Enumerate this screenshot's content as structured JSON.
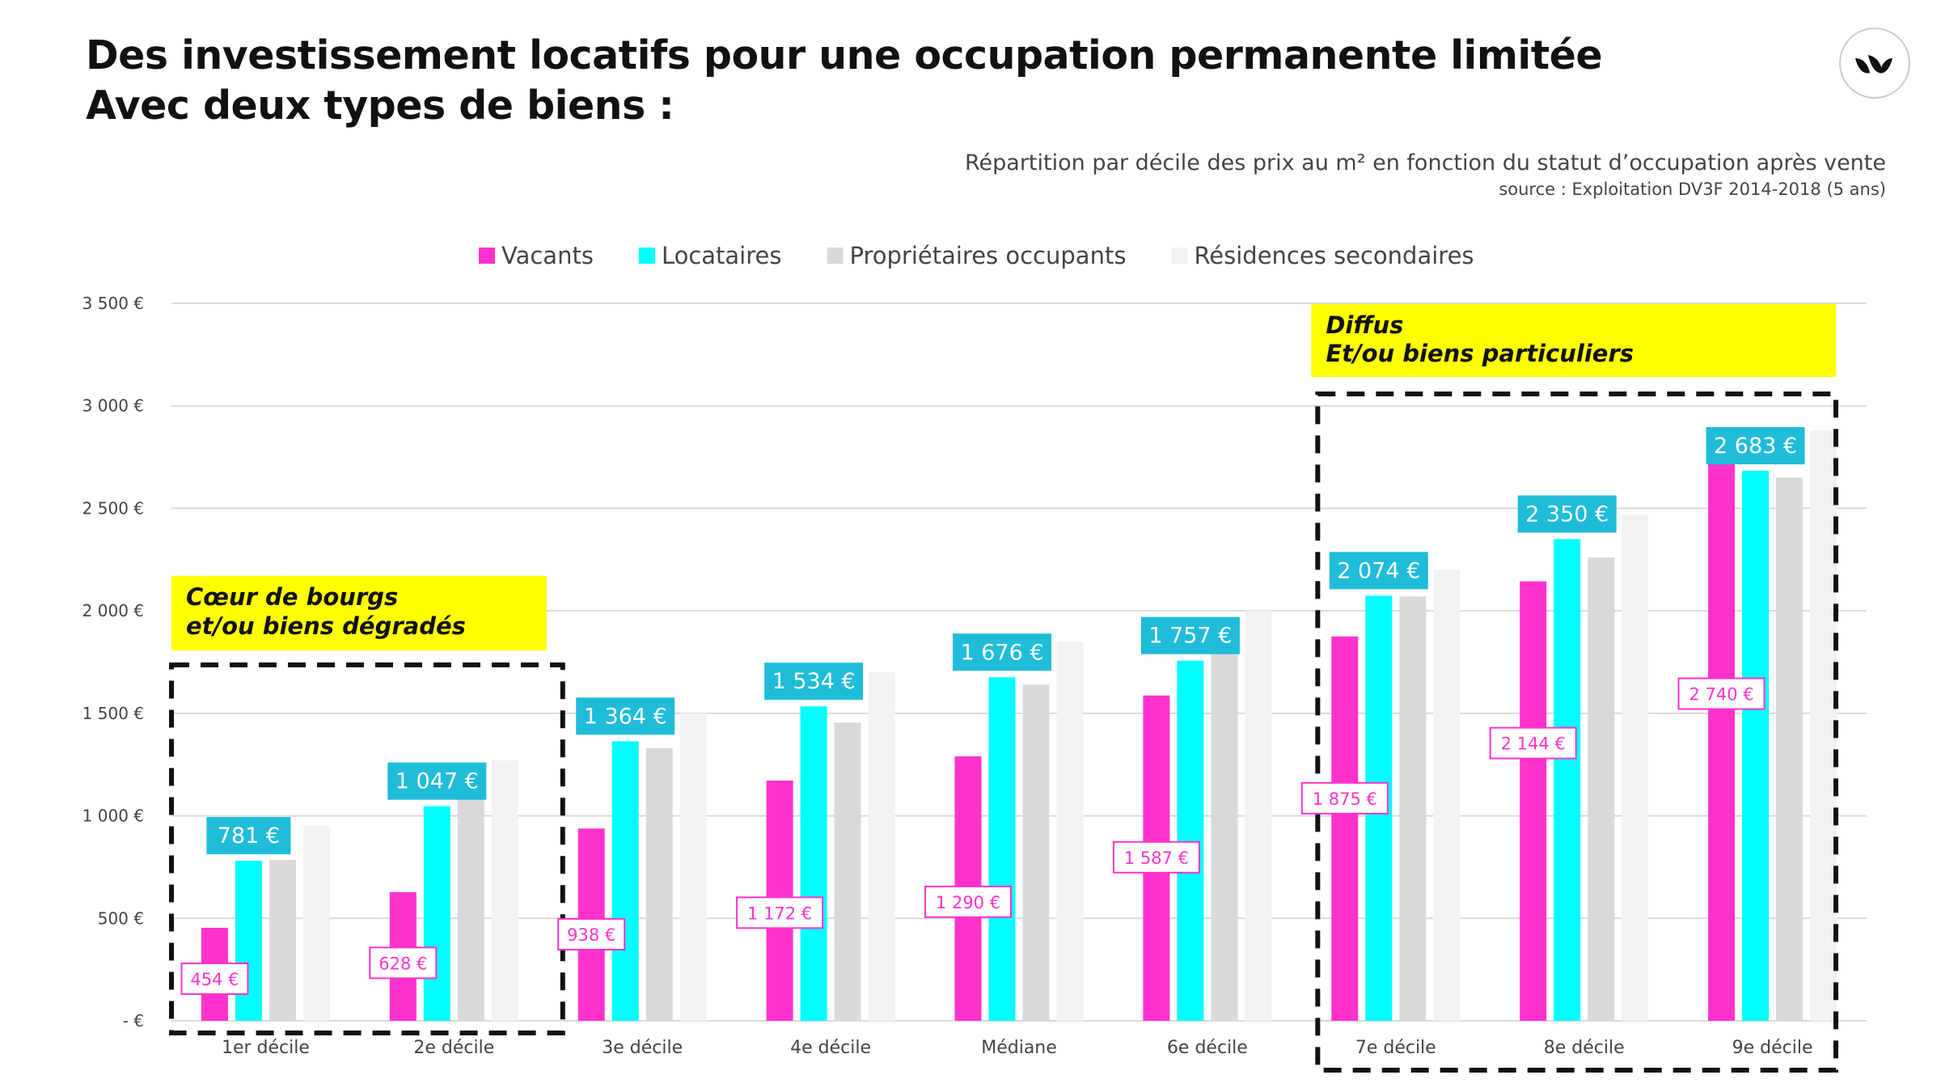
{
  "header": {
    "title_line1": "Des investissement locatifs pour une occupation permanente limitée",
    "title_line2": "Avec deux types de biens :",
    "subtitle": "Répartition par décile des prix au m² en fonction du statut d’occupation après vente",
    "source": "source : Exploitation DV3F 2014-2018 (5 ans)"
  },
  "colors": {
    "vacants": "#ff33cc",
    "locataires": "#00ffff",
    "proprietaires": "#d9d9d9",
    "residences": "#f2f2f2",
    "label_blue": "#1fbcd9",
    "highlight": "#ffff00"
  },
  "chart_data": {
    "type": "bar",
    "categories": [
      "1er décile",
      "2e décile",
      "3e décile",
      "4e décile",
      "Médiane",
      "6e décile",
      "7e décile",
      "8e décile",
      "9e décile"
    ],
    "series": [
      {
        "name": "Vacants",
        "values": [
          454,
          628,
          938,
          1172,
          1290,
          1587,
          1875,
          2144,
          2740
        ]
      },
      {
        "name": "Locataires",
        "values": [
          781,
          1047,
          1364,
          1534,
          1676,
          1757,
          2074,
          2350,
          2683
        ]
      },
      {
        "name": "Propriétaires occupants",
        "values": [
          785,
          1100,
          1330,
          1455,
          1640,
          1800,
          2070,
          2260,
          2650
        ]
      },
      {
        "name": "Résidences secondaires",
        "values": [
          950,
          1270,
          1500,
          1700,
          1850,
          2000,
          2200,
          2470,
          2880
        ]
      }
    ],
    "vacant_labels": [
      "454 €",
      "628 €",
      "938 €",
      "1 172 €",
      "1 290 €",
      "1 587 €",
      "1 875 €",
      "2 144 €",
      "2 740 €"
    ],
    "locataire_labels": [
      "781 €",
      "1 047 €",
      "1 364 €",
      "1 534 €",
      "1 676 €",
      "1 757 €",
      "2 074 €",
      "2 350 €",
      "2 683 €"
    ],
    "ylim": [
      0,
      3500
    ],
    "yticks": [
      0,
      500,
      1000,
      1500,
      2000,
      2500,
      3000,
      3500
    ],
    "ytick_labels": [
      "-  €",
      "500 €",
      "1 000 €",
      "1 500 €",
      "2 000 €",
      "2 500 €",
      "3 000 €",
      "3 500 €"
    ],
    "grid": true,
    "legend": "top"
  },
  "annotations": {
    "left_box_line1": "Cœur de bourgs",
    "left_box_line2": "et/ou biens dégradés",
    "right_box_line1": "Diffus",
    "right_box_line2": "Et/ou biens particuliers"
  }
}
